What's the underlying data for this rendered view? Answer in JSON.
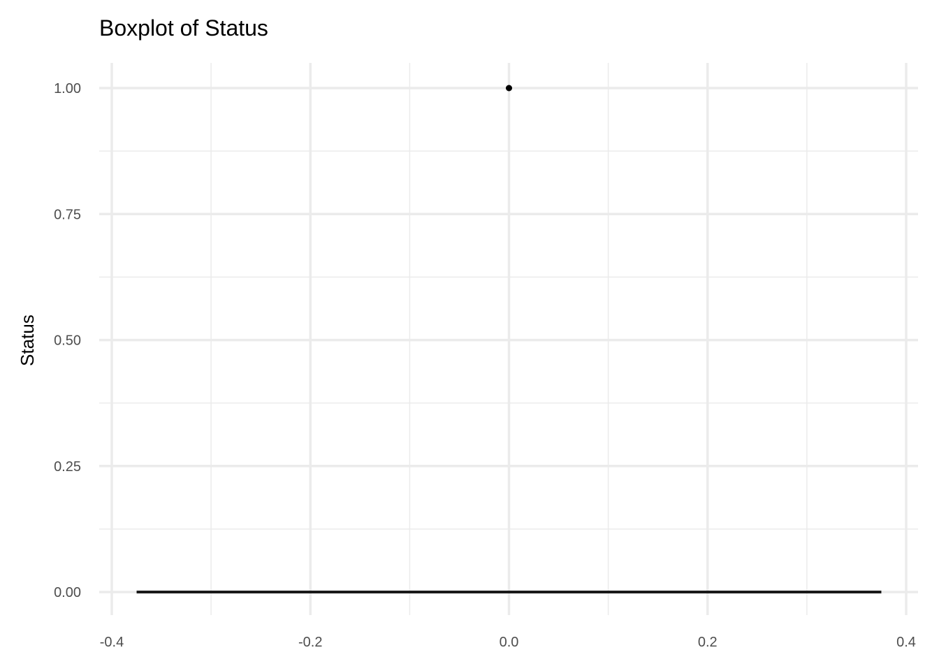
{
  "chart_data": {
    "type": "boxplot",
    "title": "Boxplot of Status",
    "xlabel": "",
    "ylabel": "Status",
    "xlim": [
      -0.4,
      0.4
    ],
    "ylim": [
      0,
      1
    ],
    "x_ticks": [
      "-0.4",
      "-0.2",
      "0.0",
      "0.2",
      "0.4"
    ],
    "y_ticks": [
      "0.00",
      "0.25",
      "0.50",
      "0.75",
      "1.00"
    ],
    "x_tick_values": [
      -0.4,
      -0.2,
      0.0,
      0.2,
      0.4
    ],
    "y_tick_values": [
      0,
      0.25,
      0.5,
      0.75,
      1.0
    ],
    "grid": true,
    "box": {
      "x": 0.0,
      "width": 0.75,
      "q1": 0,
      "median": 0,
      "q3": 0,
      "whisker_low": 0,
      "whisker_high": 0,
      "outliers": [
        1.0
      ]
    },
    "colors": {
      "box": "#1a1a1a",
      "grid": "#ebebeb",
      "outlier": "#000000"
    }
  }
}
